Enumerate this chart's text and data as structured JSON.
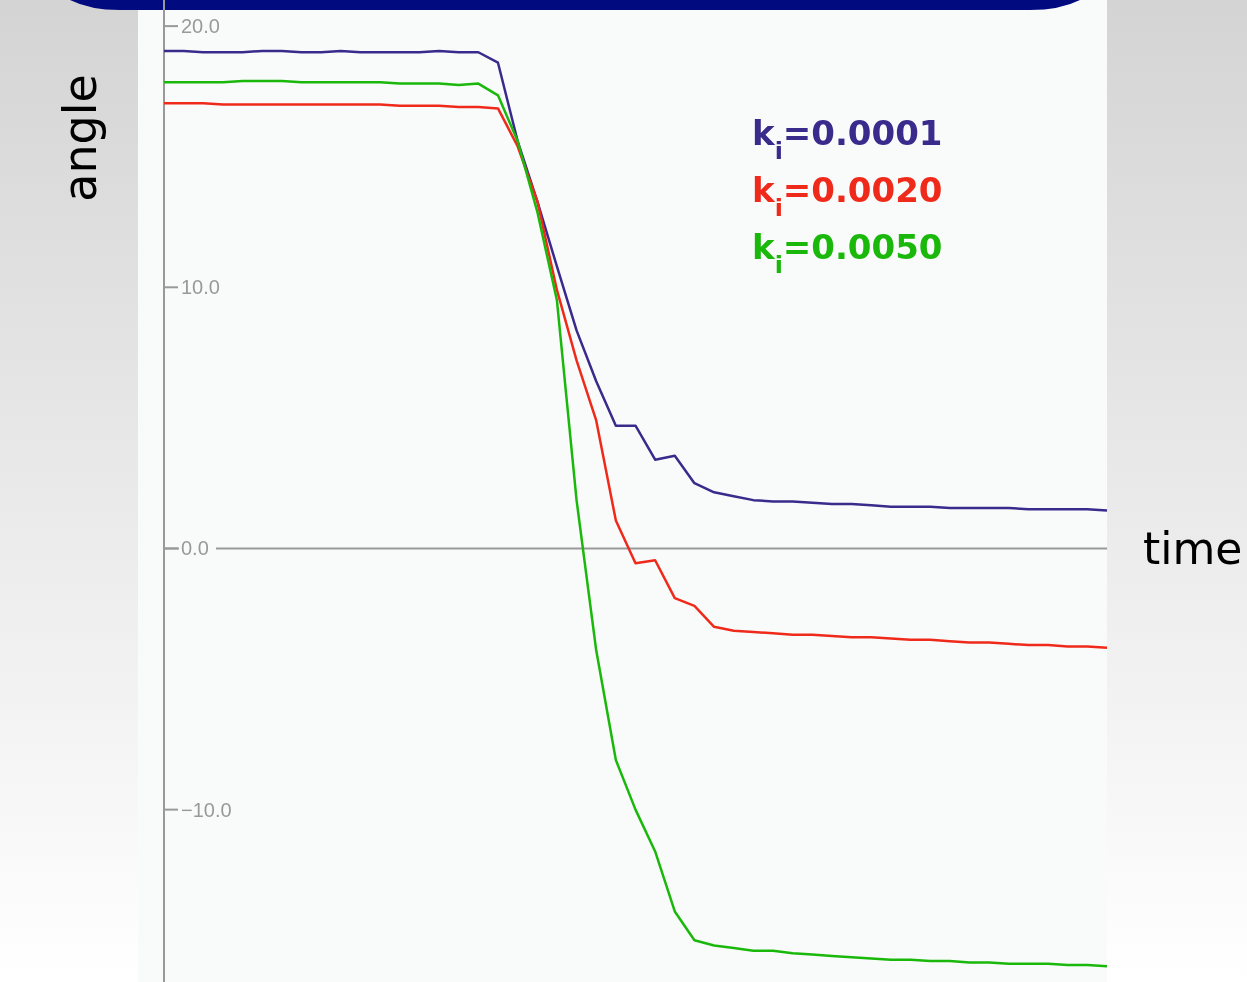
{
  "chart_data": {
    "type": "line",
    "xlabel": "time",
    "ylabel": "angle",
    "categories": [
      null,
      null,
      null,
      null,
      null,
      null,
      null,
      null,
      null,
      null,
      null,
      null,
      null,
      null,
      null,
      null,
      null,
      null,
      null,
      null,
      null,
      null,
      null,
      null,
      null,
      null,
      null,
      null,
      null,
      null,
      null,
      null,
      null,
      null,
      null,
      null,
      null,
      null,
      null,
      null,
      null,
      null,
      null,
      null,
      null,
      null,
      null,
      null,
      null
    ],
    "ylim": [
      -16.6,
      21
    ],
    "yticks": [
      {
        "value": 20,
        "label": "20.0"
      },
      {
        "value": 10,
        "label": "10.0"
      },
      {
        "value": 0,
        "label": "0.0"
      },
      {
        "value": -10,
        "label": "−10.0"
      }
    ],
    "legend": "top right",
    "line_style": "solid",
    "marker": "none",
    "series": [
      {
        "name": "k$_{i}$=0.0001",
        "color": "#3a2a8c",
        "values": [
          19.05,
          19.05,
          19.0,
          19.0,
          19.0,
          19.05,
          19.05,
          19.0,
          19.0,
          19.05,
          19.0,
          19.0,
          19.0,
          19.0,
          19.05,
          19.0,
          19.0,
          18.6,
          15.6,
          13.3,
          10.8,
          8.35,
          6.4,
          4.7,
          4.7,
          3.4,
          3.55,
          2.5,
          2.15,
          2.0,
          1.85,
          1.8,
          1.8,
          1.75,
          1.7,
          1.7,
          1.65,
          1.6,
          1.6,
          1.6,
          1.55,
          1.55,
          1.55,
          1.55,
          1.5,
          1.5,
          1.5,
          1.5,
          1.45
        ]
      },
      {
        "name": "k$_{i}$=0.0020",
        "color": "#f02a1a",
        "values": [
          17.05,
          17.05,
          17.05,
          17.0,
          17.0,
          17.0,
          17.0,
          17.0,
          17.0,
          17.0,
          17.0,
          17.0,
          16.95,
          16.95,
          16.95,
          16.9,
          16.9,
          16.85,
          15.4,
          13.3,
          9.9,
          7.2,
          4.9,
          1.07,
          -0.57,
          -0.45,
          -1.9,
          -2.2,
          -3.0,
          -3.15,
          -3.2,
          -3.25,
          -3.3,
          -3.3,
          -3.35,
          -3.4,
          -3.4,
          -3.45,
          -3.5,
          -3.5,
          -3.55,
          -3.6,
          -3.6,
          -3.65,
          -3.7,
          -3.7,
          -3.75,
          -3.75,
          -3.8
        ]
      },
      {
        "name": "k$_{i}$=0.0050",
        "color": "#1ab80a",
        "values": [
          17.85,
          17.85,
          17.85,
          17.85,
          17.9,
          17.9,
          17.9,
          17.85,
          17.85,
          17.85,
          17.85,
          17.85,
          17.8,
          17.8,
          17.8,
          17.75,
          17.8,
          17.35,
          15.6,
          12.9,
          9.5,
          1.85,
          -3.9,
          -8.1,
          -10.0,
          -11.6,
          -13.9,
          -15.0,
          -15.2,
          -15.3,
          -15.4,
          -15.4,
          -15.5,
          -15.55,
          -15.6,
          -15.65,
          -15.7,
          -15.75,
          -15.75,
          -15.8,
          -15.8,
          -15.85,
          -15.85,
          -15.9,
          -15.9,
          -15.9,
          -15.95,
          -15.95,
          -16.0
        ]
      }
    ]
  }
}
